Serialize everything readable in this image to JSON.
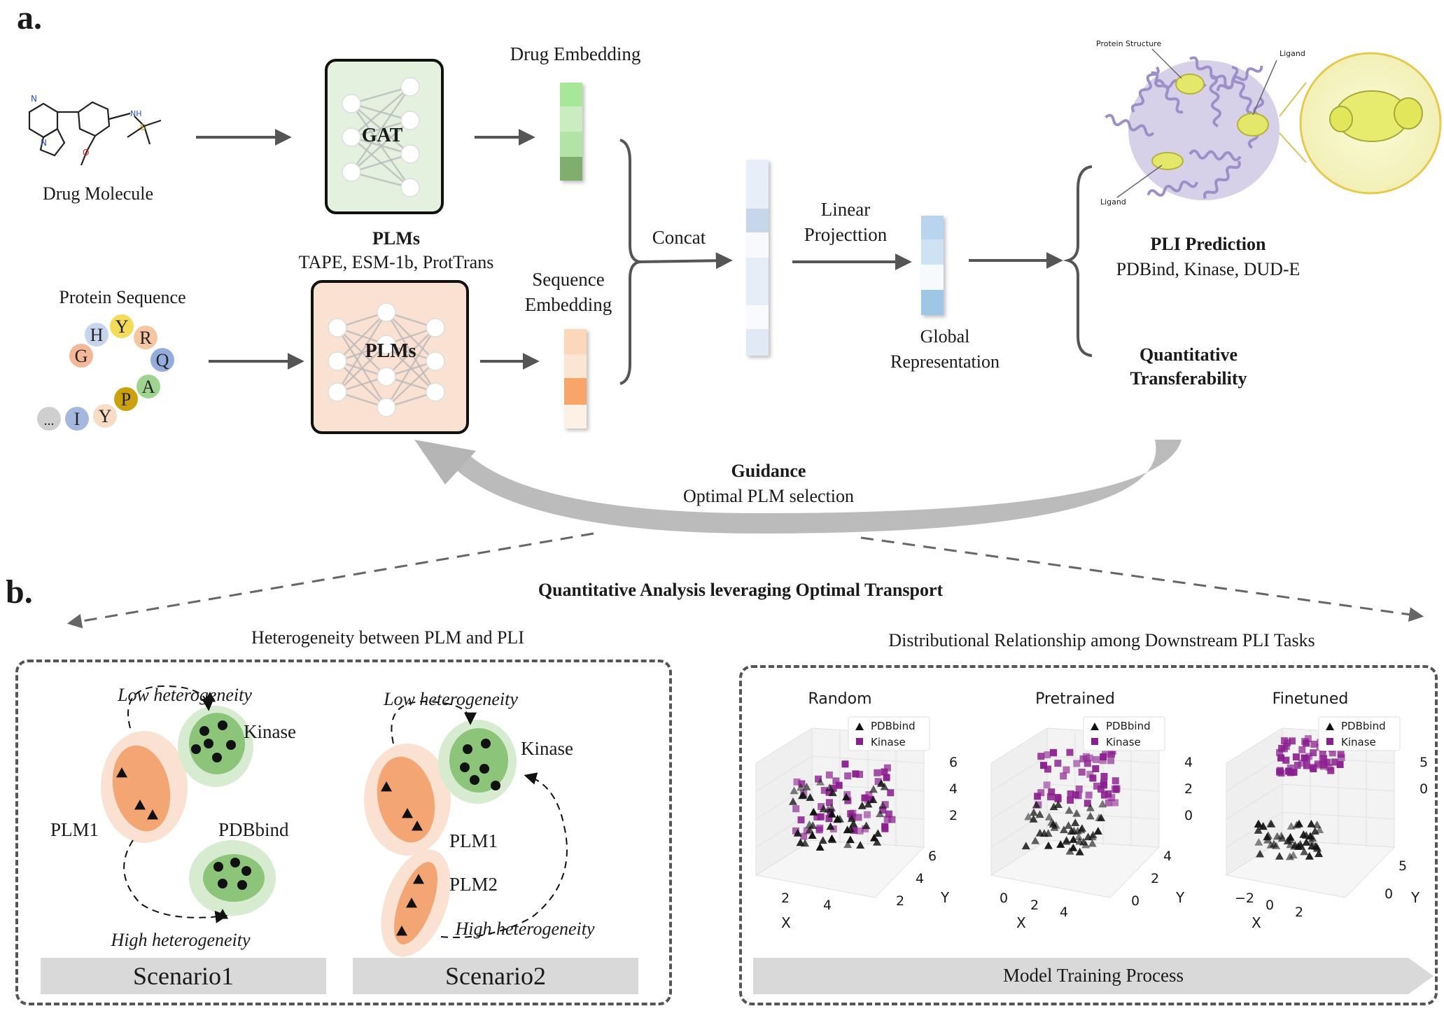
{
  "panel_a": {
    "label": "a.",
    "drug_molecule": "Drug Molecule",
    "gat_label": "GAT",
    "drug_embedding": "Drug Embedding",
    "plms_title": "PLMs",
    "plms_models": "TAPE, ESM-1b, ProtTrans",
    "protein_sequence": "Protein Sequence",
    "plms_box_label": "PLMs",
    "sequence_embedding_line1": "Sequence",
    "sequence_embedding_line2": "Embedding",
    "concat": "Concat",
    "linear_projection_line1": "Linear",
    "linear_projection_line2": "Projecttion",
    "global_rep_line1": "Global",
    "global_rep_line2": "Representation",
    "pli_prediction": "PLI Prediction",
    "pli_datasets": "PDBind, Kinase, DUD-E",
    "quant_line1": "Quantitative",
    "quant_line2": "Transferability",
    "guidance": "Guidance",
    "guidance_sub": "Optimal PLM selection",
    "protein_structure_label": "Protein Structure",
    "ligand_label_top": "Ligand",
    "ligand_label_bottom": "Ligand",
    "amino_acids": [
      {
        "letter": "H",
        "color": "#c8d4ee"
      },
      {
        "letter": "Y",
        "color": "#f4dc5a"
      },
      {
        "letter": "R",
        "color": "#f6c6a4"
      },
      {
        "letter": "G",
        "color": "#f3b89a"
      },
      {
        "letter": "Q",
        "color": "#93acdc"
      },
      {
        "letter": "A",
        "color": "#9fd48f"
      },
      {
        "letter": "P",
        "color": "#c9a20e"
      },
      {
        "letter": "Y",
        "color": "#f8dcc6"
      },
      {
        "letter": "I",
        "color": "#a4b7df"
      },
      {
        "letter": "...",
        "color": "#cfcfcf"
      }
    ],
    "molecule_atoms": {
      "n1": "N",
      "n2": "N",
      "nh": "NH",
      "o": "O",
      "s": "S"
    },
    "colors": {
      "gat_fill": "#e4f1df",
      "plm_fill": "#fbe1d2",
      "arrow": "#555555",
      "guidance_arrow": "#b8b8b8"
    }
  },
  "panel_b": {
    "label": "b.",
    "title": "Quantitative Analysis leveraging Optimal Transport",
    "left_heading": "Heterogeneity between PLM and PLI",
    "right_heading": "Distributional Relationship among Downstream PLI Tasks",
    "scenario1": {
      "low": "Low heterogeneity",
      "high": "High heterogeneity",
      "kinase": "Kinase",
      "pdbbind": "PDBbind",
      "plm1": "PLM1",
      "banner": "Scenario1"
    },
    "scenario2": {
      "low": "Low heterogeneity",
      "high": "High heterogeneity",
      "kinase": "Kinase",
      "plm1": "PLM1",
      "plm2": "PLM2",
      "banner": "Scenario2"
    },
    "training_banner": "Model Training Process",
    "colors": {
      "orange": "#f4a574",
      "green": "#8cc57a",
      "purple": "#8b1f8f"
    }
  },
  "chart_data": [
    {
      "type": "scatter",
      "title": "Random",
      "legend": [
        "PDBbind",
        "Kinase"
      ],
      "legend_placement": "top-right",
      "x_ticks": [
        "2",
        "4"
      ],
      "y_ticks": [
        "2",
        "4",
        "6"
      ],
      "z_ticks": [
        "2",
        "4",
        "6"
      ],
      "xlabel": "X",
      "ylabel": "Y",
      "separation": 0.1
    },
    {
      "type": "scatter",
      "title": "Pretrained",
      "legend": [
        "PDBbind",
        "Kinase"
      ],
      "legend_placement": "top-right",
      "x_ticks": [
        "0",
        "2",
        "4"
      ],
      "y_ticks": [
        "0",
        "2",
        "4"
      ],
      "z_ticks": [
        "0",
        "2",
        "4"
      ],
      "xlabel": "X",
      "ylabel": "Y",
      "separation": 0.55
    },
    {
      "type": "scatter",
      "title": "Finetuned",
      "legend": [
        "PDBbind",
        "Kinase"
      ],
      "legend_placement": "top-right",
      "x_ticks": [
        "−2",
        "0",
        "2"
      ],
      "y_ticks": [
        "0",
        "5"
      ],
      "z_ticks": [
        "0",
        "5"
      ],
      "xlabel": "X",
      "ylabel": "Y",
      "separation": 1.0
    }
  ]
}
